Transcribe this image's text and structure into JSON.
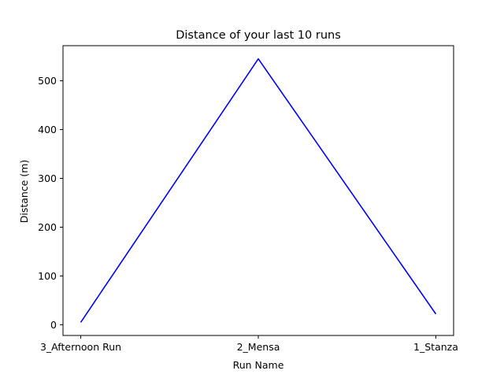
{
  "chart_data": {
    "type": "line",
    "title": "Distance of your last 10 runs",
    "xlabel": "Run Name",
    "ylabel": "Distance (m)",
    "categories": [
      "3_Afternoon Run",
      "2_Mensa",
      "1_Stanza"
    ],
    "series": [
      {
        "values": [
          5,
          545,
          22
        ],
        "color": "#0000ff"
      }
    ],
    "ylim": [
      -22,
      572
    ],
    "yticks": [
      0,
      100,
      200,
      300,
      400,
      500
    ],
    "grid": false,
    "legend": false
  }
}
